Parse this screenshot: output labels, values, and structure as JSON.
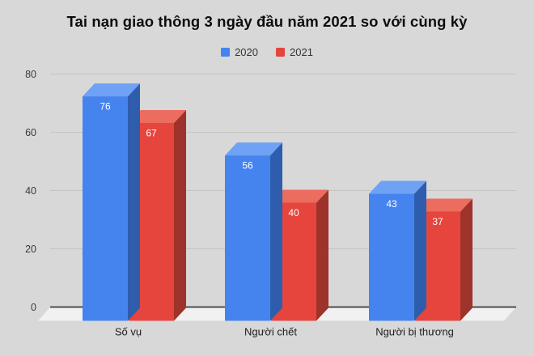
{
  "chart_data": {
    "type": "bar",
    "effect": "3d-columns",
    "title": "Tai nạn giao thông 3 ngày đầu năm 2021 so với cùng kỳ",
    "categories": [
      "Số vụ",
      "Người chết",
      "Người bị thương"
    ],
    "series": [
      {
        "name": "2020",
        "values": [
          76,
          56,
          43
        ],
        "color": "#4583ee",
        "color_top": "#6fa2f4",
        "color_side": "#2e5dad"
      },
      {
        "name": "2021",
        "values": [
          67,
          40,
          37
        ],
        "color": "#e5453c",
        "color_top": "#ec6c5f",
        "color_side": "#9e332b"
      }
    ],
    "xlabel": "",
    "ylabel": "",
    "ylim": [
      0,
      80
    ],
    "yticks": [
      0,
      20,
      40,
      60,
      80
    ],
    "grid": true,
    "legend_position": "top",
    "value_labels": true
  },
  "style": {
    "background": "#d8d8d8",
    "floor": "#f1f1f1",
    "gridline": "#c4c4c4",
    "axis_line": "#3a3a3a",
    "title_color": "#0d0d0d",
    "legend_text_color": "#343434",
    "tick_label_color": "#3a3a3a",
    "category_label_color": "#212121",
    "value_label_color": "#ffffff"
  }
}
